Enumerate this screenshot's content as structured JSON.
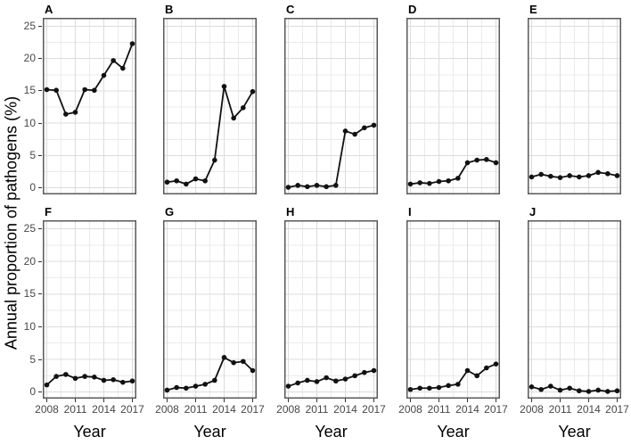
{
  "figure": {
    "colors": {
      "background": "#ffffff",
      "panel_background": "#ffffff",
      "panel_border": "#595959",
      "grid_major": "#dcdcdc",
      "grid_minor": "#ebebeb",
      "data_line": "#111111",
      "data_point": "#111111",
      "tick_label": "#474747",
      "axis_title": "#000000"
    }
  },
  "chart_data": {
    "type": "line",
    "title": "",
    "xlabel": "Year",
    "ylabel": "Annual proportion of pathogens (%)",
    "x": [
      2008,
      2009,
      2010,
      2011,
      2012,
      2013,
      2014,
      2015,
      2016,
      2017
    ],
    "x_ticks": [
      2008,
      2011,
      2014,
      2017
    ],
    "x_minor_ticks": [
      2009.5,
      2012.5,
      2015.5
    ],
    "y_ticks": [
      0,
      5,
      10,
      15,
      20,
      25
    ],
    "y_minor_ticks": [
      2.5,
      7.5,
      12.5,
      17.5,
      22.5
    ],
    "xlim": [
      2008,
      2017
    ],
    "ylim": [
      -1,
      26.3
    ],
    "grid": "major+minor",
    "legend": "none",
    "series": [
      {
        "name": "A",
        "values": [
          15.2,
          15.1,
          11.4,
          11.7,
          15.2,
          15.1,
          17.4,
          19.7,
          18.5,
          22.3
        ]
      },
      {
        "name": "B",
        "values": [
          0.9,
          1.1,
          0.6,
          1.4,
          1.1,
          4.3,
          15.7,
          10.8,
          12.4,
          14.9
        ]
      },
      {
        "name": "C",
        "values": [
          0.1,
          0.4,
          0.2,
          0.4,
          0.2,
          0.4,
          8.8,
          8.3,
          9.3,
          9.7
        ]
      },
      {
        "name": "D",
        "values": [
          0.6,
          0.8,
          0.7,
          1.0,
          1.1,
          1.5,
          3.9,
          4.3,
          4.4,
          3.9
        ]
      },
      {
        "name": "E",
        "values": [
          1.7,
          2.1,
          1.8,
          1.6,
          1.9,
          1.7,
          1.9,
          2.4,
          2.2,
          1.9
        ]
      },
      {
        "name": "F",
        "values": [
          1.1,
          2.4,
          2.7,
          2.1,
          2.4,
          2.3,
          1.8,
          1.9,
          1.5,
          1.7
        ]
      },
      {
        "name": "G",
        "values": [
          0.3,
          0.7,
          0.6,
          0.9,
          1.2,
          1.8,
          5.3,
          4.5,
          4.7,
          3.3
        ]
      },
      {
        "name": "H",
        "values": [
          0.9,
          1.4,
          1.8,
          1.6,
          2.2,
          1.7,
          2.0,
          2.5,
          3.0,
          3.3
        ]
      },
      {
        "name": "I",
        "values": [
          0.4,
          0.6,
          0.6,
          0.7,
          1.0,
          1.2,
          3.3,
          2.5,
          3.7,
          4.3
        ]
      },
      {
        "name": "J",
        "values": [
          0.8,
          0.4,
          0.9,
          0.3,
          0.6,
          0.2,
          0.1,
          0.3,
          0.1,
          0.2
        ]
      }
    ]
  }
}
